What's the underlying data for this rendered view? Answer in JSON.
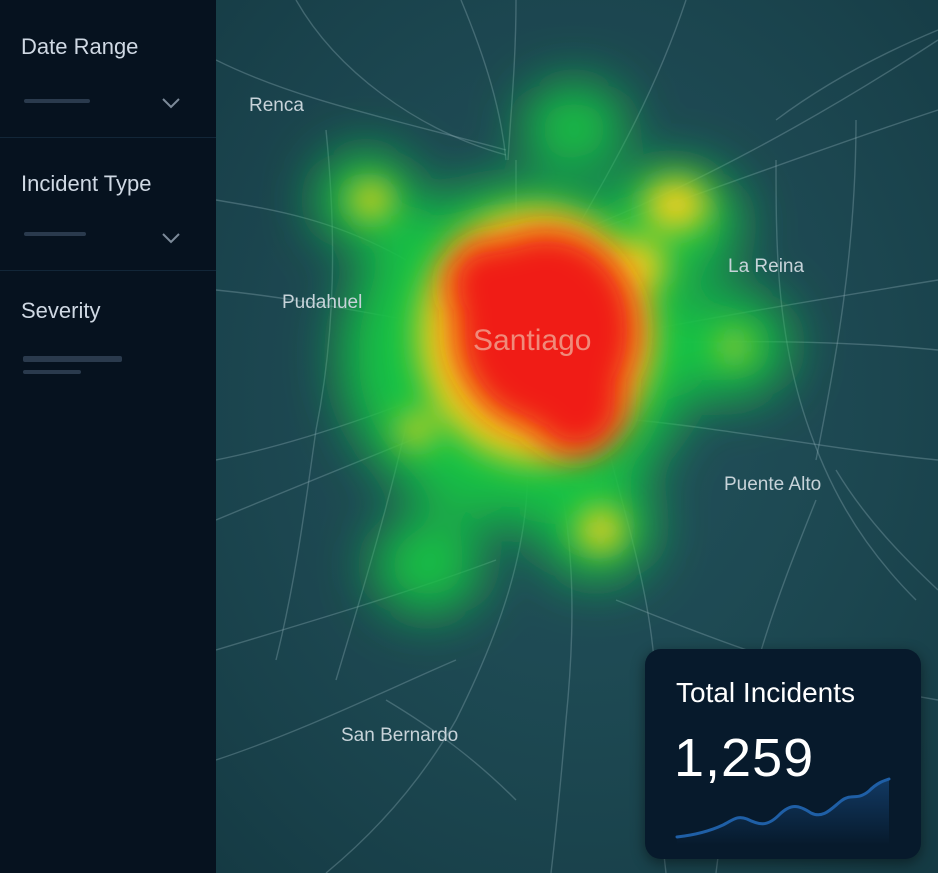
{
  "sidebar": {
    "filters": [
      {
        "label": "Date Range",
        "control": "dropdown",
        "selected_value": ""
      },
      {
        "label": "Incident Type",
        "control": "dropdown",
        "selected_value": ""
      },
      {
        "label": "Severity",
        "control": "range"
      }
    ]
  },
  "map": {
    "places": [
      "Renca",
      "La Reina",
      "Pudahuel",
      "Puente Alto",
      "San Bernardo"
    ],
    "city": "Santiago",
    "heatmap_colors": {
      "low": "#19c244",
      "medium": "#f0d01e",
      "high": "#f01c18"
    }
  },
  "stat_card": {
    "title": "Total Incidents",
    "value": "1,259",
    "trend_icon": "sparkline-icon",
    "accent_color": "#1f5fa6"
  },
  "colors": {
    "sidebar_bg": "#06121f",
    "map_bg": "#1d4a54",
    "card_bg": "#071a2c"
  }
}
